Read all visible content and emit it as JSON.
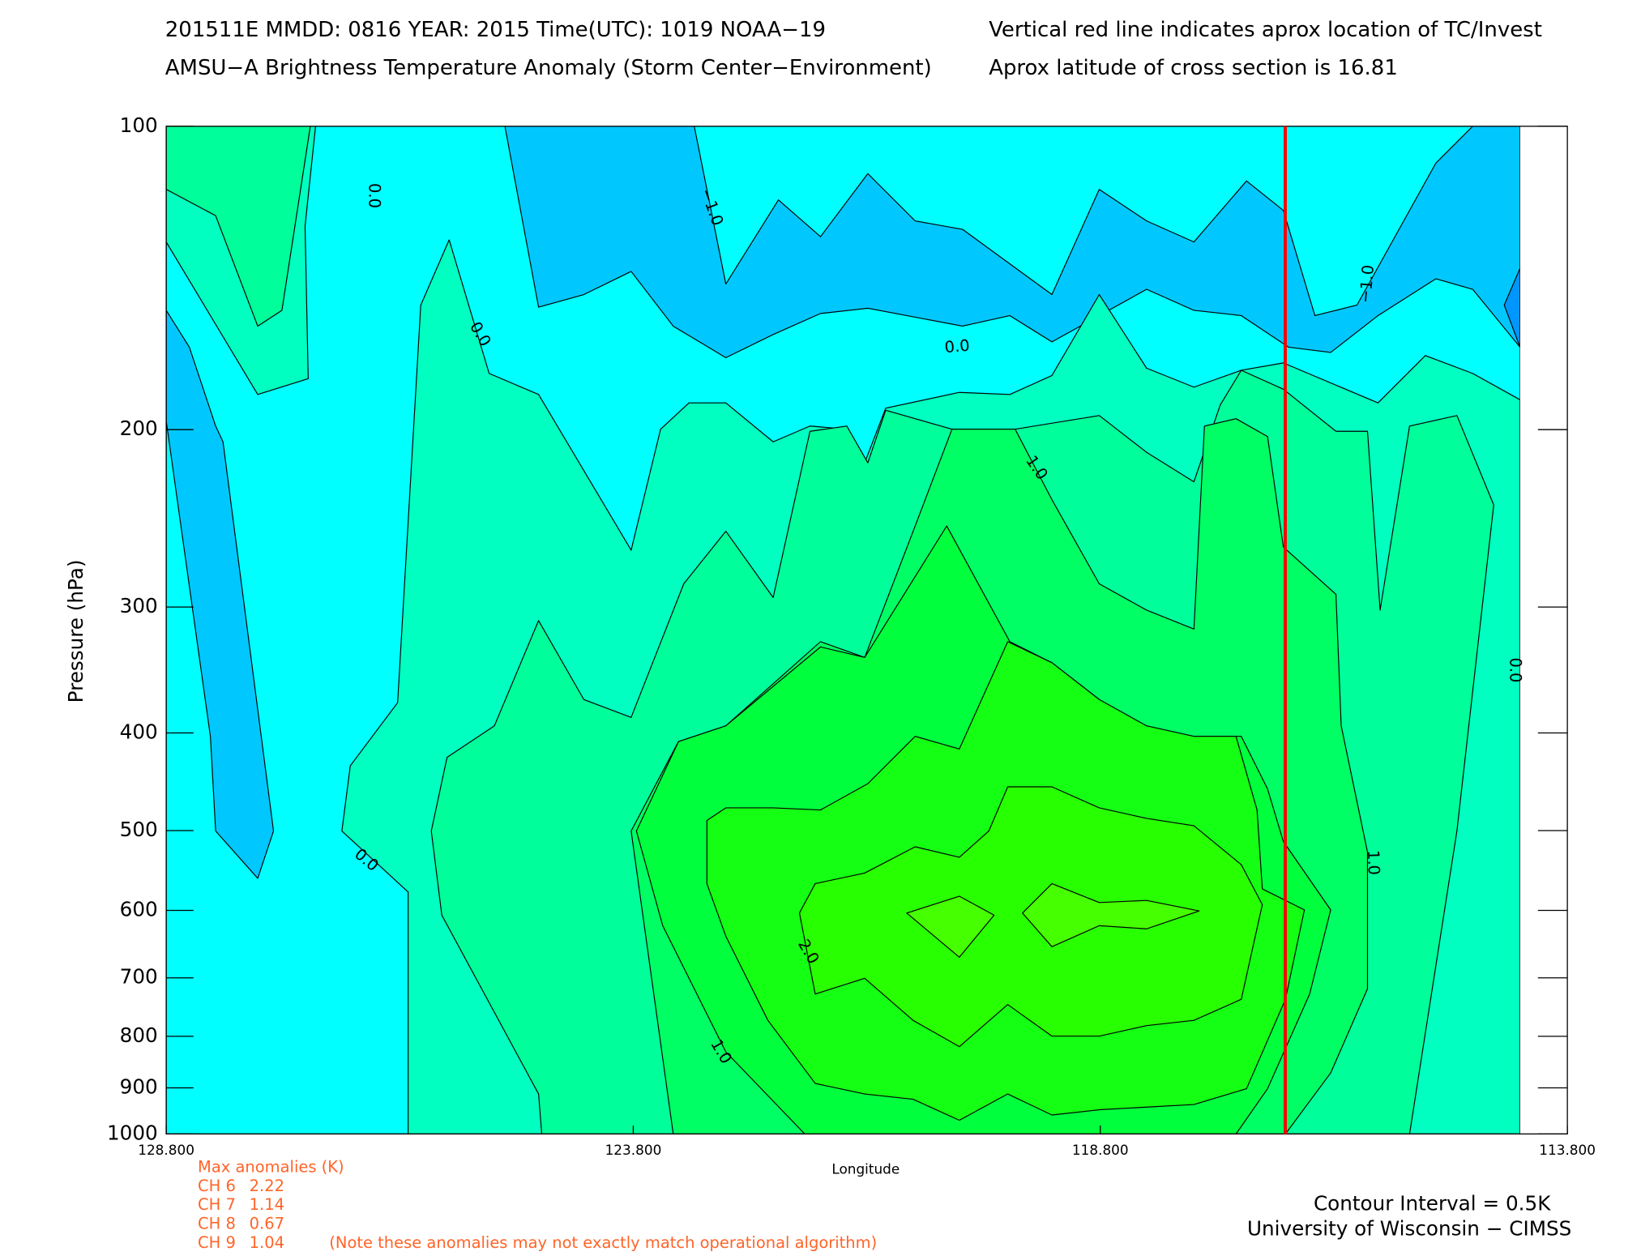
{
  "chart_data": {
    "type": "contour",
    "title_lines": [
      "201511E  MMDD: 0816 YEAR: 2015 Time(UTC): 1019 NOAA−19",
      "AMSU−A Brightness Temperature Anomaly (Storm Center−Environment)"
    ],
    "note_lines": [
      "Vertical red line indicates aprox location of TC/Invest",
      "Aprox latitude of cross section is 16.81"
    ],
    "xlabel": "Longitude",
    "ylabel": "Pressure (hPa)",
    "xlim": [
      128.8,
      113.8
    ],
    "xticks": [
      {
        "value": 128.8,
        "label": "128.800"
      },
      {
        "value": 123.8,
        "label": "123.800"
      },
      {
        "value": 118.8,
        "label": "118.800"
      },
      {
        "value": 113.8,
        "label": "113.800"
      }
    ],
    "ylim": [
      1000,
      100
    ],
    "log_y": true,
    "yticks": [
      100,
      200,
      300,
      400,
      500,
      600,
      700,
      800,
      900,
      1000
    ],
    "marker_longitude": 116.82,
    "marker_color": "#ff0000",
    "contour_labels": [
      "0.0",
      "−1.0",
      "0.0",
      "0.0",
      "1.0",
      "−1.0",
      "0.0",
      "0.0",
      "1.0",
      "2.0",
      "1.0"
    ],
    "max_anomalies": {
      "title": "Max anomalies (K)",
      "channels": [
        "CH 6",
        "CH 7",
        "CH 8",
        "CH 9"
      ],
      "values": [
        2.22,
        1.14,
        0.67,
        1.04
      ],
      "note": "(Note these anomalies may not exactly match operational algorithm)",
      "color": "#ff6428"
    },
    "footer_lines": [
      "Contour Interval = 0.5K",
      "University of Wisconsin − CIMSS"
    ]
  }
}
